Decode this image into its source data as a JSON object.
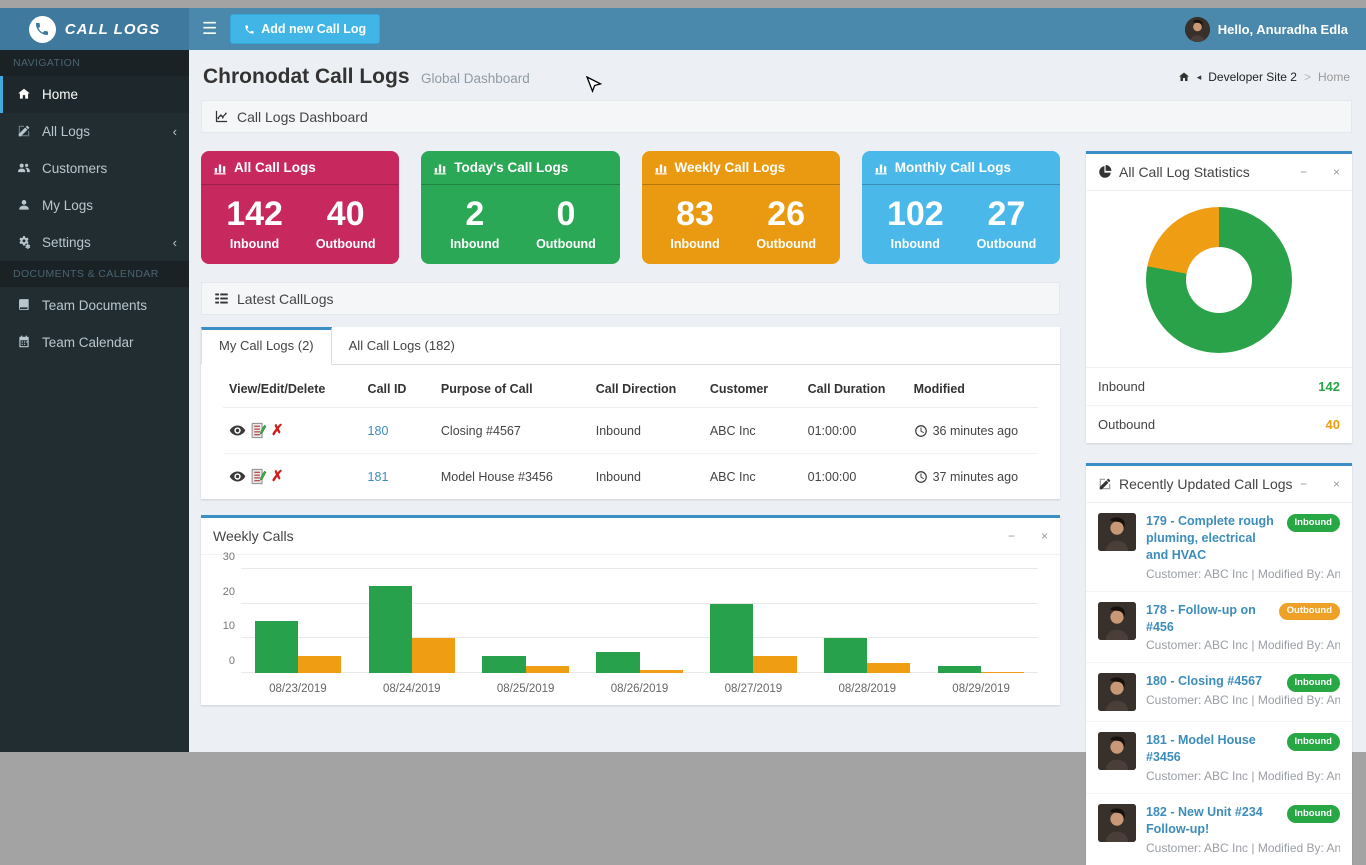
{
  "header": {
    "brand": "Call Logs",
    "add_button": "Add new Call Log",
    "greeting": "Hello, Anuradha Edla"
  },
  "sidebar": {
    "sections": [
      {
        "label": "NAVIGATION",
        "items": [
          {
            "label": "Home",
            "icon": "home-icon",
            "active": true
          },
          {
            "label": "All Logs",
            "icon": "edit-icon",
            "chevron": "‹"
          },
          {
            "label": "Customers",
            "icon": "users-icon"
          },
          {
            "label": "My Logs",
            "icon": "user-icon"
          },
          {
            "label": "Settings",
            "icon": "gears-icon",
            "chevron": "‹"
          }
        ]
      },
      {
        "label": "DOCUMENTS & CALENDAR",
        "items": [
          {
            "label": "Team Documents",
            "icon": "book-icon"
          },
          {
            "label": "Team Calendar",
            "icon": "calendar-icon"
          }
        ]
      }
    ]
  },
  "page": {
    "title": "Chronodat Call Logs",
    "subtitle": "Global Dashboard",
    "section_title": "Call Logs Dashboard",
    "breadcrumb": {
      "site": "Developer Site 2",
      "sep": ">",
      "current": "Home"
    }
  },
  "labels": {
    "inbound": "Inbound",
    "outbound": "Outbound"
  },
  "stat_cards": [
    {
      "title": "All Call Logs",
      "inbound": "142",
      "outbound": "40",
      "color": "#c7295f"
    },
    {
      "title": "Today's Call Logs",
      "inbound": "2",
      "outbound": "0",
      "color": "#2aa855"
    },
    {
      "title": "Weekly Call Logs",
      "inbound": "83",
      "outbound": "26",
      "color": "#ea9a11"
    },
    {
      "title": "Monthly Call Logs",
      "inbound": "102",
      "outbound": "27",
      "color": "#4ab8e8"
    }
  ],
  "latest": {
    "title": "Latest CallLogs",
    "tabs": [
      {
        "label": "My Call Logs (2)",
        "active": true
      },
      {
        "label": "All Call Logs (182)",
        "active": false
      }
    ],
    "table": {
      "columns": [
        "View/Edit/Delete",
        "Call ID",
        "Purpose of Call",
        "Call Direction",
        "Customer",
        "Call Duration",
        "Modified"
      ],
      "rows": [
        {
          "id": "180",
          "purpose": "Closing #4567",
          "direction": "Inbound",
          "customer": "ABC Inc",
          "duration": "01:00:00",
          "modified": "36 minutes ago"
        },
        {
          "id": "181",
          "purpose": "Model House #3456",
          "direction": "Inbound",
          "customer": "ABC Inc",
          "duration": "01:00:00",
          "modified": "37 minutes ago"
        }
      ]
    }
  },
  "chart_data": [
    {
      "type": "bar",
      "title": "Weekly Calls",
      "categories": [
        "08/23/2019",
        "08/24/2019",
        "08/25/2019",
        "08/26/2019",
        "08/27/2019",
        "08/28/2019",
        "08/29/2019"
      ],
      "series": [
        {
          "name": "Inbound",
          "color": "#27a14b",
          "values": [
            15,
            25,
            5,
            6,
            20,
            10,
            2
          ]
        },
        {
          "name": "Outbound",
          "color": "#ef9d13",
          "values": [
            5,
            10,
            2,
            1,
            5,
            3,
            0.3
          ]
        }
      ],
      "ylim": [
        0,
        30
      ],
      "yticks": [
        0,
        10,
        20,
        30
      ],
      "grid": true,
      "legend": "none",
      "xlabel": "",
      "ylabel": ""
    },
    {
      "type": "pie",
      "donut": true,
      "title": "All Call Log Statistics",
      "labels": [
        "Inbound",
        "Outbound"
      ],
      "values": [
        142,
        40
      ],
      "colors": [
        "#2aa249",
        "#ef9d13"
      ],
      "legend": "table-below"
    }
  ],
  "stats_panel": {
    "title": "All Call Log Statistics",
    "legend": [
      {
        "label": "Inbound",
        "value": "142"
      },
      {
        "label": "Outbound",
        "value": "40"
      }
    ]
  },
  "recent": {
    "title": "Recently Updated Call Logs",
    "items": [
      {
        "title": "179 - Complete rough pluming, electrical and HVAC",
        "badge": "Inbound",
        "badge_color": "#28a745",
        "meta": "Customer: ABC Inc | Modified By: Anurad…"
      },
      {
        "title": "178 - Follow-up on #456",
        "badge": "Outbound",
        "badge_color": "#eea127",
        "meta": "Customer: ABC Inc | Modified By: Anurad…"
      },
      {
        "title": "180 - Closing #4567",
        "badge": "Inbound",
        "badge_color": "#28a745",
        "meta": "Customer: ABC Inc | Modified By: Anurad…"
      },
      {
        "title": "181 - Model House #3456",
        "badge": "Inbound",
        "badge_color": "#28a745",
        "meta": "Customer: ABC Inc | Modified By: Anurad…"
      },
      {
        "title": "182 - New Unit #234 Follow-up!",
        "badge": "Inbound",
        "badge_color": "#28a745",
        "meta": "Customer: ABC Inc | Modified By: Anurad…"
      }
    ]
  },
  "panel_controls": {
    "minimize": "−",
    "close": "×"
  }
}
